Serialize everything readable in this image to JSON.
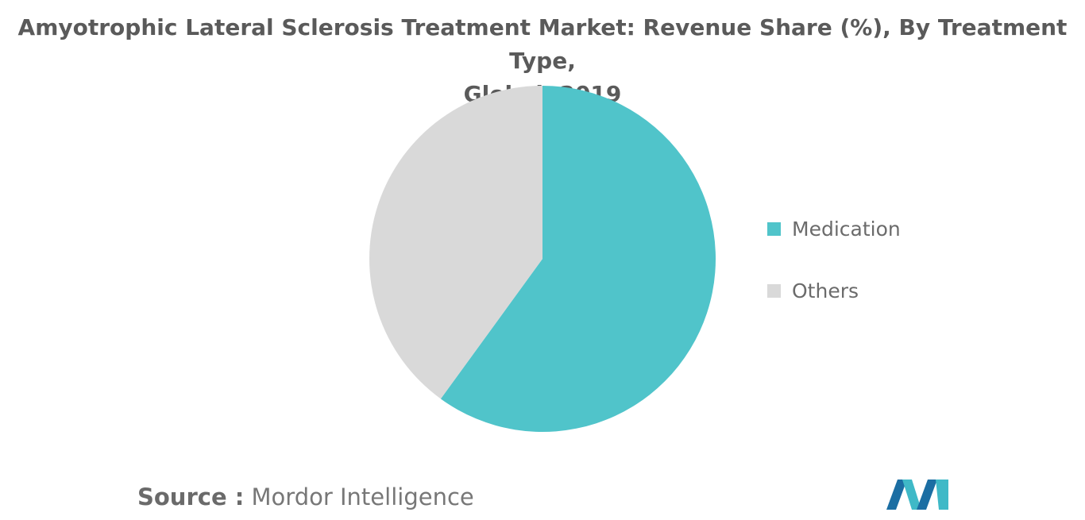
{
  "chart_data": {
    "type": "pie",
    "title_line1": "Amyotrophic Lateral Sclerosis Treatment Market: Revenue Share (%), By Treatment Type,",
    "title_line2": "Global, 2019",
    "categories": [
      "Medication",
      "Others"
    ],
    "values": [
      60,
      40
    ],
    "colors": [
      "#50c4ca",
      "#d9d9d9"
    ],
    "start_angle_deg": 0,
    "direction": "clockwise",
    "legend_position": "right"
  },
  "source": {
    "label": "Source :",
    "value": "Mordor Intelligence"
  },
  "logo": {
    "name": "mordor-intelligence-logo",
    "colors": [
      "#1b6ea3",
      "#3fb9c7"
    ]
  }
}
